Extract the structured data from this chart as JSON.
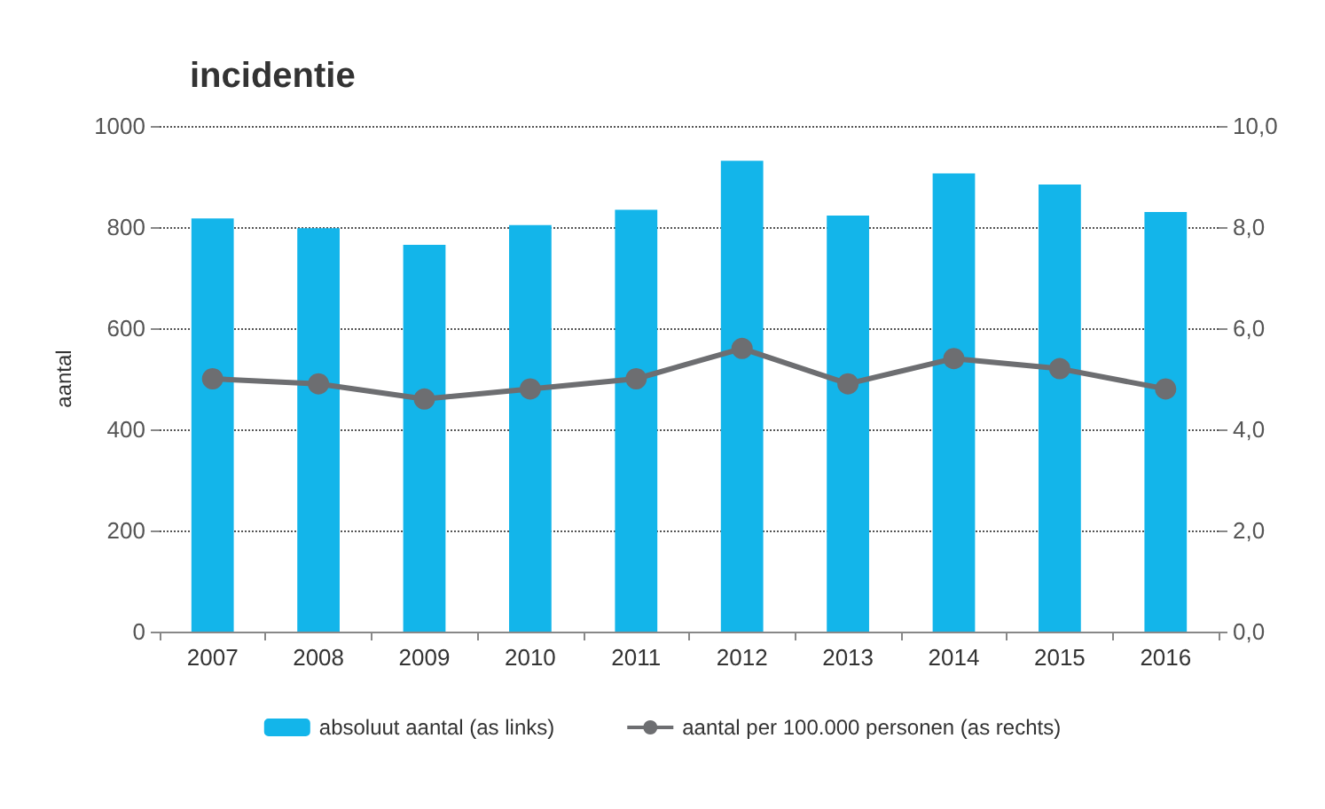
{
  "chart_data": {
    "type": "bar",
    "title": "incidentie",
    "ylabel": "aantal",
    "categories": [
      "2007",
      "2008",
      "2009",
      "2010",
      "2011",
      "2012",
      "2013",
      "2014",
      "2015",
      "2016"
    ],
    "series": [
      {
        "name": "absoluut aantal (as links)",
        "color": "#13b5ea",
        "values": [
          817,
          798,
          765,
          804,
          834,
          931,
          823,
          906,
          884,
          830
        ]
      },
      {
        "name": "aantal per 100.000 personen (as rechts)",
        "type": "line",
        "axis": "y2",
        "color": "#6d6e71",
        "marker": "circle",
        "values": [
          5.0,
          4.9,
          4.6,
          4.8,
          5.0,
          5.6,
          4.9,
          5.4,
          5.2,
          4.8
        ]
      }
    ],
    "ylim": [
      0,
      1000
    ],
    "yticks": [
      0,
      200,
      400,
      600,
      800,
      1000
    ],
    "y2lim": [
      0,
      10
    ],
    "y2ticks": [
      {
        "value": 0,
        "label": "0,0"
      },
      {
        "value": 2,
        "label": "2,0"
      },
      {
        "value": 4,
        "label": "4,0"
      },
      {
        "value": 6,
        "label": "6,0"
      },
      {
        "value": 8,
        "label": "8,0"
      },
      {
        "value": 10,
        "label": "10,0"
      }
    ],
    "grid": "y",
    "legend": "bottom"
  }
}
